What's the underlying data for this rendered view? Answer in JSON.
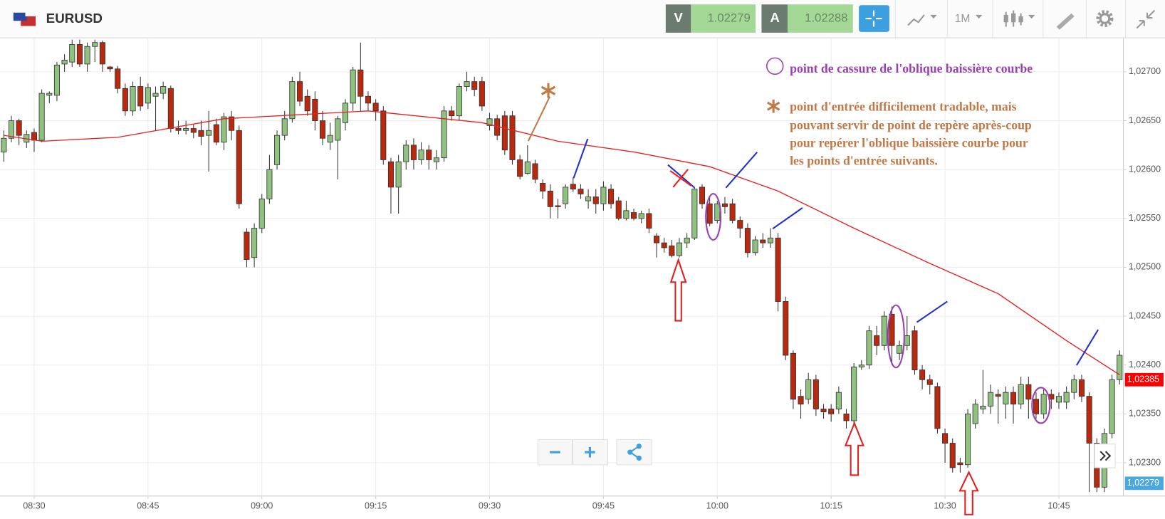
{
  "header": {
    "symbol": "EURUSD",
    "sell": {
      "label": "V",
      "price": 1.02279
    },
    "buy": {
      "label": "A",
      "price": 1.02288
    },
    "timeframe": "1M"
  },
  "chart_data": {
    "type": "candlestick",
    "up_color": "#8fc17f",
    "down_color": "#b8290e",
    "grid": true,
    "xlim": [
      -0.5,
      147.5
    ],
    "xticks": [
      {
        "value": 4,
        "label": "08:30"
      },
      {
        "value": 19,
        "label": "08:45"
      },
      {
        "value": 34,
        "label": "09:00"
      },
      {
        "value": 49,
        "label": "09:15"
      },
      {
        "value": 64,
        "label": "09:30"
      },
      {
        "value": 79,
        "label": "09:45"
      },
      {
        "value": 94,
        "label": "10:00"
      },
      {
        "value": 109,
        "label": "10:15"
      },
      {
        "value": 124,
        "label": "10:30"
      },
      {
        "value": 139,
        "label": "10:45"
      }
    ],
    "ylim": [
      1.02266,
      1.02734
    ],
    "yticks": [
      {
        "value": 1.023,
        "label": "1,02300"
      },
      {
        "value": 1.0235,
        "label": "1,02350"
      },
      {
        "value": 1.024,
        "label": "1,02400"
      },
      {
        "value": 1.0245,
        "label": "1,02450"
      },
      {
        "value": 1.025,
        "label": "1,02500"
      },
      {
        "value": 1.0255,
        "label": "1,02550"
      },
      {
        "value": 1.026,
        "label": "1,02600"
      },
      {
        "value": 1.0265,
        "label": "1,02650"
      },
      {
        "value": 1.027,
        "label": "1,02700"
      }
    ],
    "price_tags": [
      {
        "value": 1.02385,
        "label": "1,02385",
        "color": "#ff0000"
      },
      {
        "value": 1.02279,
        "label": "1,02279",
        "color": "#4aa8e0"
      }
    ],
    "ma": {
      "color": "#e82020",
      "x": [
        0,
        5,
        15,
        29,
        48,
        63,
        73,
        83,
        93,
        102,
        112,
        122,
        131,
        140,
        147
      ],
      "values": [
        1.02635,
        1.02629,
        1.02633,
        1.02652,
        1.0266,
        1.02648,
        1.02629,
        1.02618,
        1.02603,
        1.02578,
        1.0254,
        1.02504,
        1.02473,
        1.02425,
        1.0239
      ]
    },
    "candles": [
      [
        1.02618,
        1.0264,
        1.02608,
        1.02632
      ],
      [
        1.02632,
        1.02655,
        1.02628,
        1.0265
      ],
      [
        1.0265,
        1.02652,
        1.02625,
        1.02635
      ],
      [
        1.02628,
        1.0264,
        1.02622,
        1.02636
      ],
      [
        1.02638,
        1.02642,
        1.02618,
        1.0263
      ],
      [
        1.0263,
        1.02682,
        1.02628,
        1.02678
      ],
      [
        1.02676,
        1.0268,
        1.02668,
        1.02678
      ],
      [
        1.02676,
        1.0271,
        1.0267,
        1.02707
      ],
      [
        1.02708,
        1.02718,
        1.027,
        1.02712
      ],
      [
        1.0271,
        1.02733,
        1.02705,
        1.02728
      ],
      [
        1.02728,
        1.02733,
        1.02705,
        1.02708
      ],
      [
        1.02708,
        1.0273,
        1.027,
        1.02726
      ],
      [
        1.02726,
        1.02733,
        1.0271,
        1.0273
      ],
      [
        1.0273,
        1.02732,
        1.027,
        1.02708
      ],
      [
        1.02705,
        1.02706,
        1.027,
        1.02703
      ],
      [
        1.02703,
        1.02706,
        1.02678,
        1.02683
      ],
      [
        1.02683,
        1.02688,
        1.02655,
        1.0266
      ],
      [
        1.0266,
        1.0269,
        1.02655,
        1.02685
      ],
      [
        1.02685,
        1.02695,
        1.0266,
        1.02665
      ],
      [
        1.02668,
        1.02688,
        1.02662,
        1.02684
      ],
      [
        1.02675,
        1.02685,
        1.0264,
        1.02678
      ],
      [
        1.02678,
        1.0269,
        1.02672,
        1.02685
      ],
      [
        1.02683,
        1.02686,
        1.02638,
        1.02642
      ],
      [
        1.02642,
        1.0265,
        1.02636,
        1.0264
      ],
      [
        1.0264,
        1.0265,
        1.02636,
        1.02642
      ],
      [
        1.02642,
        1.02646,
        1.02632,
        1.02638
      ],
      [
        1.0264,
        1.0265,
        1.02625,
        1.02634
      ],
      [
        1.02635,
        1.0266,
        1.02598,
        1.0264
      ],
      [
        1.02646,
        1.02652,
        1.02625,
        1.02628
      ],
      [
        1.02628,
        1.02658,
        1.0262,
        1.02654
      ],
      [
        1.02654,
        1.0266,
        1.0263,
        1.0264
      ],
      [
        1.0264,
        1.02645,
        1.0256,
        1.02565
      ],
      [
        1.02536,
        1.0254,
        1.025,
        1.02508
      ],
      [
        1.0251,
        1.02545,
        1.025,
        1.0254
      ],
      [
        1.0254,
        1.02575,
        1.02535,
        1.0257
      ],
      [
        1.0257,
        1.02615,
        1.02565,
        1.026
      ],
      [
        1.02605,
        1.0264,
        1.026,
        1.02635
      ],
      [
        1.02635,
        1.0266,
        1.0263,
        1.02652
      ],
      [
        1.02652,
        1.02695,
        1.02648,
        1.0269
      ],
      [
        1.0269,
        1.027,
        1.02665,
        1.0267
      ],
      [
        1.02675,
        1.02682,
        1.02655,
        1.0266
      ],
      [
        1.02672,
        1.0268,
        1.0264,
        1.0265
      ],
      [
        1.0265,
        1.0266,
        1.02625,
        1.02632
      ],
      [
        1.02628,
        1.02648,
        1.0262,
        1.02635
      ],
      [
        1.0263,
        1.02655,
        1.0259,
        1.02652
      ],
      [
        1.02648,
        1.02672,
        1.0264,
        1.02668
      ],
      [
        1.02668,
        1.02705,
        1.0266,
        1.02702
      ],
      [
        1.02702,
        1.0273,
        1.0266,
        1.02675
      ],
      [
        1.02675,
        1.0268,
        1.0266,
        1.02668
      ],
      [
        1.02668,
        1.02672,
        1.0265,
        1.0266
      ],
      [
        1.0266,
        1.02665,
        1.02605,
        1.0261
      ],
      [
        1.02608,
        1.02612,
        1.02555,
        1.02582
      ],
      [
        1.02582,
        1.02615,
        1.02555,
        1.02608
      ],
      [
        1.02608,
        1.0263,
        1.026,
        1.02625
      ],
      [
        1.02625,
        1.02632,
        1.026,
        1.0261
      ],
      [
        1.0261,
        1.02628,
        1.02605,
        1.0262
      ],
      [
        1.0262,
        1.02625,
        1.026,
        1.0261
      ],
      [
        1.02608,
        1.0262,
        1.026,
        1.02612
      ],
      [
        1.02612,
        1.02665,
        1.02608,
        1.0266
      ],
      [
        1.0266,
        1.02665,
        1.0265,
        1.02655
      ],
      [
        1.02655,
        1.02688,
        1.0265,
        1.02685
      ],
      [
        1.02685,
        1.027,
        1.0268,
        1.0269
      ],
      [
        1.0269,
        1.02695,
        1.02675,
        1.02682
      ],
      [
        1.0269,
        1.02695,
        1.0266,
        1.02665
      ],
      [
        1.02645,
        1.02658,
        1.0264,
        1.02652
      ],
      [
        1.02652,
        1.02656,
        1.0263,
        1.02635
      ],
      [
        1.02655,
        1.0266,
        1.02615,
        1.0262
      ],
      [
        1.02655,
        1.0266,
        1.02605,
        1.0261
      ],
      [
        1.0261,
        1.02615,
        1.0259,
        1.02593
      ],
      [
        1.02596,
        1.02625,
        1.02595,
        1.02608
      ],
      [
        1.02606,
        1.0261,
        1.02586,
        1.0259
      ],
      [
        1.02586,
        1.0259,
        1.0257,
        1.02578
      ],
      [
        1.02578,
        1.02585,
        1.0255,
        1.02562
      ],
      [
        1.02563,
        1.0257,
        1.0255,
        1.02562
      ],
      [
        1.02565,
        1.02585,
        1.0256,
        1.02582
      ],
      [
        1.02585,
        1.02592,
        1.02577,
        1.0258
      ],
      [
        1.0258,
        1.02585,
        1.0257,
        1.02575
      ],
      [
        1.02568,
        1.0258,
        1.0256,
        1.02572
      ],
      [
        1.02572,
        1.0258,
        1.02555,
        1.02565
      ],
      [
        1.02565,
        1.02588,
        1.02558,
        1.02582
      ],
      [
        1.0258,
        1.02585,
        1.0256,
        1.02565
      ],
      [
        1.02568,
        1.02572,
        1.02548,
        1.0255
      ],
      [
        1.0255,
        1.02568,
        1.02548,
        1.02558
      ],
      [
        1.02556,
        1.0256,
        1.02548,
        1.0255
      ],
      [
        1.0255,
        1.02558,
        1.02545,
        1.02555
      ],
      [
        1.02555,
        1.0256,
        1.02535,
        1.0254
      ],
      [
        1.02532,
        1.02535,
        1.0251,
        1.02525
      ],
      [
        1.02525,
        1.0253,
        1.02515,
        1.0252
      ],
      [
        1.02522,
        1.02528,
        1.0251,
        1.02512
      ],
      [
        1.02512,
        1.0253,
        1.0251,
        1.02525
      ],
      [
        1.02525,
        1.02535,
        1.0252,
        1.0253
      ],
      [
        1.0253,
        1.02582,
        1.02528,
        1.0258
      ],
      [
        1.02582,
        1.02585,
        1.0256,
        1.02565
      ],
      [
        1.02565,
        1.02572,
        1.02542,
        1.02545
      ],
      [
        1.02548,
        1.02568,
        1.02545,
        1.02565
      ],
      [
        1.02565,
        1.02572,
        1.02555,
        1.02562
      ],
      [
        1.02565,
        1.0257,
        1.02545,
        1.02548
      ],
      [
        1.02548,
        1.02552,
        1.0253,
        1.0254
      ],
      [
        1.0254,
        1.02545,
        1.0251,
        1.02515
      ],
      [
        1.02515,
        1.02532,
        1.02512,
        1.02528
      ],
      [
        1.02528,
        1.02535,
        1.0252,
        1.02525
      ],
      [
        1.02525,
        1.0254,
        1.0252,
        1.0253
      ],
      [
        1.0253,
        1.02535,
        1.02455,
        1.02465
      ],
      [
        1.02465,
        1.0247,
        1.02405,
        1.0241
      ],
      [
        1.02412,
        1.02415,
        1.02355,
        1.02365
      ],
      [
        1.02368,
        1.02375,
        1.02345,
        1.0236
      ],
      [
        1.02365,
        1.02392,
        1.0236,
        1.02385
      ],
      [
        1.02385,
        1.0239,
        1.02348,
        1.02355
      ],
      [
        1.02355,
        1.0236,
        1.02345,
        1.02352
      ],
      [
        1.02355,
        1.0236,
        1.02342,
        1.0235
      ],
      [
        1.02355,
        1.02378,
        1.0235,
        1.02372
      ],
      [
        1.0235,
        1.02355,
        1.02335,
        1.02343
      ],
      [
        1.02343,
        1.02402,
        1.0234,
        1.02398
      ],
      [
        1.02398,
        1.02405,
        1.02395,
        1.024
      ],
      [
        1.024,
        1.0244,
        1.02396,
        1.02435
      ],
      [
        1.0243,
        1.0244,
        1.0241,
        1.0242
      ],
      [
        1.0242,
        1.02455,
        1.02415,
        1.0245
      ],
      [
        1.02452,
        1.0246,
        1.024,
        1.0242
      ],
      [
        1.02412,
        1.02425,
        1.02405,
        1.0242
      ],
      [
        1.0242,
        1.0245,
        1.02415,
        1.0243
      ],
      [
        1.02435,
        1.0244,
        1.0239,
        1.02395
      ],
      [
        1.02395,
        1.024,
        1.02375,
        1.02385
      ],
      [
        1.02385,
        1.0239,
        1.0237,
        1.0238
      ],
      [
        1.02378,
        1.02382,
        1.0233,
        1.02335
      ],
      [
        1.0233,
        1.02335,
        1.023,
        1.0232
      ],
      [
        1.0232,
        1.02325,
        1.0229,
        1.02295
      ],
      [
        1.023,
        1.02305,
        1.0229,
        1.02298
      ],
      [
        1.02298,
        1.02355,
        1.02295,
        1.0235
      ],
      [
        1.0234,
        1.02365,
        1.02335,
        1.0236
      ],
      [
        1.02355,
        1.02395,
        1.0235,
        1.02358
      ],
      [
        1.02358,
        1.0238,
        1.0235,
        1.02372
      ],
      [
        1.0237,
        1.02375,
        1.0234,
        1.02368
      ],
      [
        1.0236,
        1.02378,
        1.02345,
        1.02372
      ],
      [
        1.02372,
        1.02378,
        1.0234,
        1.0236
      ],
      [
        1.0236,
        1.02388,
        1.02355,
        1.0238
      ],
      [
        1.0238,
        1.02388,
        1.02345,
        1.02365
      ],
      [
        1.02365,
        1.02372,
        1.02345,
        1.0235
      ],
      [
        1.0235,
        1.02375,
        1.02345,
        1.0237
      ],
      [
        1.0237,
        1.02375,
        1.02355,
        1.02365
      ],
      [
        1.02362,
        1.02372,
        1.02355,
        1.02368
      ],
      [
        1.02362,
        1.02378,
        1.02355,
        1.02372
      ],
      [
        1.02372,
        1.0239,
        1.02365,
        1.02385
      ],
      [
        1.02385,
        1.0239,
        1.02362,
        1.02368
      ],
      [
        1.02368,
        1.02372,
        1.0227,
        1.0232
      ],
      [
        1.0232,
        1.02325,
        1.0227,
        1.02275
      ],
      [
        1.02275,
        1.02335,
        1.0227,
        1.0233
      ],
      [
        1.0233,
        1.0239,
        1.02325,
        1.02385
      ],
      [
        1.02385,
        1.02415,
        1.0238,
        1.0241
      ]
    ],
    "annotations": {
      "circle_note": "point de cassure de l'oblique baissière courbe",
      "star_note": [
        "point d'entrée difficilement tradable, mais",
        "pouvant servir de point de repère après-coup",
        "pour repérer l'oblique baissière courbe pour",
        "les points d'entrée suivants."
      ]
    }
  }
}
